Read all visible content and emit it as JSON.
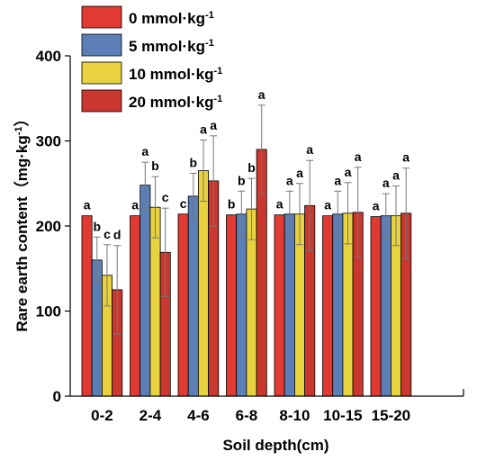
{
  "chart_data": {
    "type": "bar",
    "xlabel": "Soil depth(cm)",
    "ylabel": "Rare earth content（mg·kg",
    "ylabel_unit_sup": "-1",
    "ylabel_suffix": "）",
    "ylim": [
      0,
      400
    ],
    "yticks": [
      0,
      100,
      200,
      300,
      400
    ],
    "grid": false,
    "legend_position": "top-left",
    "categories": [
      "0-2",
      "2-4",
      "4-6",
      "6-8",
      "8-10",
      "10-15",
      "15-20"
    ],
    "series": [
      {
        "name": "0 mmol·kg",
        "name_sup": "-1",
        "color": "#e03a33",
        "values": [
          212,
          212,
          214,
          213,
          213,
          212,
          211
        ],
        "errors": [
          0,
          0,
          0,
          0,
          0,
          0,
          0
        ],
        "letters": [
          "a",
          "a",
          "c",
          "b",
          "a",
          "a",
          "a"
        ]
      },
      {
        "name": "5 mmol·kg",
        "name_sup": "-1",
        "color": "#5b7fb6",
        "values": [
          160,
          248,
          235,
          214,
          214,
          214,
          212
        ],
        "errors": [
          27,
          27,
          27,
          27,
          27,
          27,
          26
        ],
        "letters": [
          "b",
          "a",
          "b",
          "b",
          "a",
          "a",
          "a"
        ]
      },
      {
        "name": "10 mmol·kg",
        "name_sup": "-1",
        "color": "#e9d23f",
        "values": [
          142,
          222,
          265,
          220,
          214,
          215,
          212
        ],
        "errors": [
          36,
          36,
          36,
          36,
          36,
          36,
          35
        ],
        "letters": [
          "c",
          "b",
          "a",
          "b",
          "a",
          "a",
          "a"
        ]
      },
      {
        "name": "20 mmol·kg",
        "name_sup": "-1",
        "color": "#c9372f",
        "values": [
          125,
          169,
          253,
          290,
          224,
          216,
          215
        ],
        "errors": [
          52,
          52,
          53,
          52,
          53,
          53,
          53
        ],
        "letters": [
          "d",
          "c",
          "a",
          "a",
          "a",
          "a",
          "a"
        ]
      }
    ]
  }
}
